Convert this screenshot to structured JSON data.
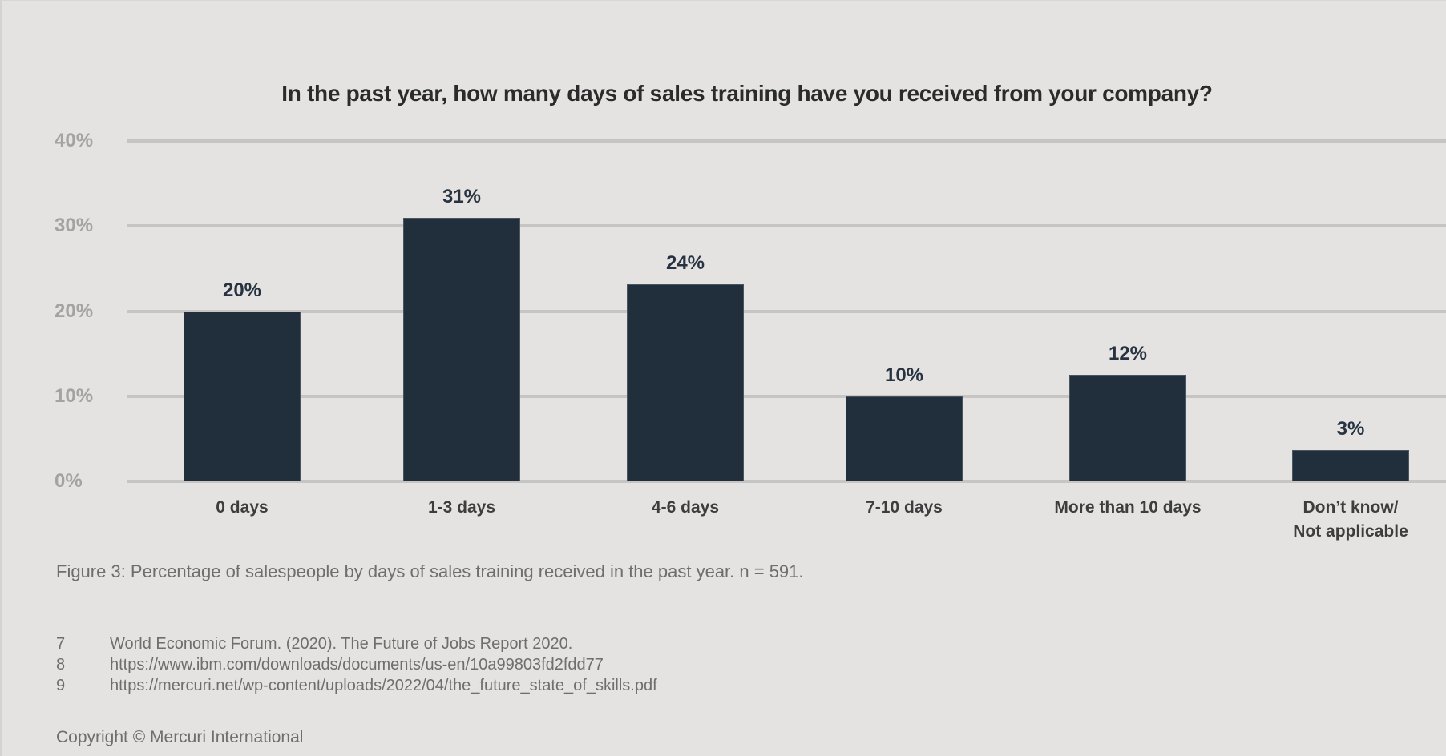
{
  "chart_data": {
    "type": "bar",
    "title": "In the past year, how many days of sales training have you received from your company?",
    "xlabel": "",
    "ylabel": "",
    "categories": [
      "0 days",
      "1-3 days",
      "4-6 days",
      "7-10 days",
      "More than 10 days",
      "Don’t know/\nNot applicable"
    ],
    "values": [
      20,
      31,
      24,
      10,
      12,
      3
    ],
    "value_labels": [
      "20%",
      "31%",
      "24%",
      "10%",
      "12%",
      "3%"
    ],
    "bar_heights_est": [
      20,
      31,
      23.2,
      10,
      12.5,
      3.7
    ],
    "ylim": [
      0,
      40
    ],
    "yticks": [
      "0%",
      "10%",
      "20%",
      "30%",
      "40%"
    ],
    "grid": true,
    "legend": null,
    "bar_color": "#212f3d"
  },
  "caption": "Figure 3: Percentage of salespeople by days of sales training received in the past year. n = 591.",
  "footnotes": [
    {
      "num": "7",
      "text": "World Economic Forum. (2020). The Future of Jobs Report 2020."
    },
    {
      "num": "8",
      "text": "https://www.ibm.com/downloads/documents/us-en/10a99803fd2fdd77"
    },
    {
      "num": "9",
      "text": "https://mercuri.net/wp-content/uploads/2022/04/the_future_state_of_skills.pdf"
    }
  ],
  "copyright": "Copyright © Mercuri International"
}
